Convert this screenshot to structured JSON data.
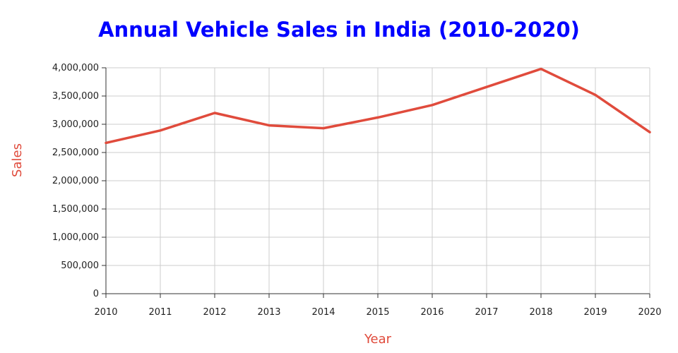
{
  "chart_data": {
    "type": "line",
    "title": "Annual Vehicle Sales in India (2010-2020)",
    "xlabel": "Year",
    "ylabel": "Sales",
    "x": [
      2010,
      2011,
      2012,
      2013,
      2014,
      2015,
      2016,
      2017,
      2018,
      2019,
      2020
    ],
    "x_tick_labels": [
      "2010",
      "2011",
      "2012",
      "2013",
      "2014",
      "2015",
      "2016",
      "2017",
      "2018",
      "2019",
      "2020"
    ],
    "series": [
      {
        "values": [
          2670000,
          2890000,
          3200000,
          2980000,
          2930000,
          3120000,
          3340000,
          3660000,
          3980000,
          3520000,
          2860000
        ],
        "color": "#e04b3c"
      }
    ],
    "ylim": [
      0,
      4000000
    ],
    "y_ticks": [
      0,
      500000,
      1000000,
      1500000,
      2000000,
      2500000,
      3000000,
      3500000,
      4000000
    ],
    "y_tick_labels": [
      "0",
      "500,000",
      "1,000,000",
      "1,500,000",
      "2,000,000",
      "2,500,000",
      "3,000,000",
      "3,500,000",
      "4,000,000"
    ],
    "grid": true,
    "legend": "none",
    "colors": {
      "title": "#0000ff",
      "axis_title": "#e04b3c",
      "grid": "#cccccc"
    }
  }
}
